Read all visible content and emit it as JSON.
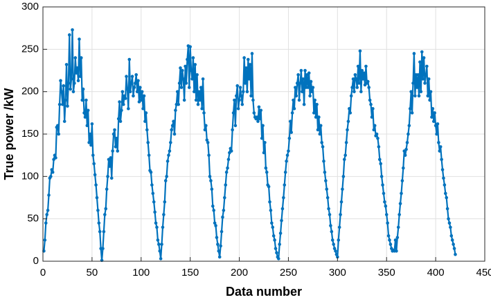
{
  "chart_data": {
    "type": "line",
    "x_label": "Data number",
    "y_label": "True power  /kW",
    "xlim": [
      0,
      450
    ],
    "xticks": [
      0,
      50,
      100,
      150,
      200,
      250,
      300,
      350,
      400,
      450
    ],
    "ylim": [
      0,
      300
    ],
    "yticks": [
      0,
      50,
      100,
      150,
      200,
      250,
      300
    ],
    "grid": true,
    "markers": true,
    "series": [
      {
        "name": "True power",
        "color": "#0072bd",
        "x": [
          1,
          2,
          3,
          4,
          5,
          6,
          7,
          8,
          9,
          10,
          11,
          12,
          13,
          14,
          15,
          16,
          17,
          18,
          19,
          20,
          21,
          22,
          23,
          24,
          25,
          26,
          27,
          28,
          29,
          30,
          31,
          32,
          33,
          34,
          35,
          36,
          37,
          38,
          39,
          40,
          41,
          42,
          43,
          44,
          45,
          46,
          47,
          48,
          49,
          50,
          51,
          52,
          53,
          54,
          55,
          56,
          57,
          58,
          59,
          60,
          61,
          62,
          63,
          64,
          65,
          66,
          67,
          68,
          69,
          70,
          71,
          72,
          73,
          74,
          75,
          76,
          77,
          78,
          79,
          80,
          81,
          82,
          83,
          84,
          85,
          86,
          87,
          88,
          89,
          90,
          91,
          92,
          93,
          94,
          95,
          96,
          97,
          98,
          99,
          100,
          101,
          102,
          103,
          104,
          105,
          106,
          107,
          108,
          109,
          110,
          111,
          112,
          113,
          114,
          115,
          116,
          117,
          118,
          119,
          120,
          121,
          122,
          123,
          124,
          125,
          126,
          127,
          128,
          129,
          130,
          131,
          132,
          133,
          134,
          135,
          136,
          137,
          138,
          139,
          140,
          141,
          142,
          143,
          144,
          145,
          146,
          147,
          148,
          149,
          150,
          151,
          152,
          153,
          154,
          155,
          156,
          157,
          158,
          159,
          160,
          161,
          162,
          163,
          164,
          165,
          166,
          167,
          168,
          169,
          170,
          171,
          172,
          173,
          174,
          175,
          176,
          177,
          178,
          179,
          180,
          181,
          182,
          183,
          184,
          185,
          186,
          187,
          188,
          189,
          190,
          191,
          192,
          193,
          194,
          195,
          196,
          197,
          198,
          199,
          200,
          201,
          202,
          203,
          204,
          205,
          206,
          207,
          208,
          209,
          210,
          211,
          212,
          213,
          214,
          215,
          216,
          217,
          218,
          219,
          220,
          221,
          222,
          223,
          224,
          225,
          226,
          227,
          228,
          229,
          230,
          231,
          232,
          233,
          234,
          235,
          236,
          237,
          238,
          239,
          240,
          241,
          242,
          243,
          244,
          245,
          246,
          247,
          248,
          249,
          250,
          251,
          252,
          253,
          254,
          255,
          256,
          257,
          258,
          259,
          260,
          261,
          262,
          263,
          264,
          265,
          266,
          267,
          268,
          269,
          270,
          271,
          272,
          273,
          274,
          275,
          276,
          277,
          278,
          279,
          280,
          281,
          282,
          283,
          284,
          285,
          286,
          287,
          288,
          289,
          290,
          291,
          292,
          293,
          294,
          295,
          296,
          297,
          298,
          299,
          300,
          301,
          302,
          303,
          304,
          305,
          306,
          307,
          308,
          309,
          310,
          311,
          312,
          313,
          314,
          315,
          316,
          317,
          318,
          319,
          320,
          321,
          322,
          323,
          324,
          325,
          326,
          327,
          328,
          329,
          330,
          331,
          332,
          333,
          334,
          335,
          336,
          337,
          338,
          339,
          340,
          341,
          342,
          343,
          344,
          345,
          346,
          347,
          348,
          349,
          350,
          351,
          352,
          353,
          354,
          355,
          356,
          357,
          358,
          359,
          360,
          361,
          362,
          363,
          364,
          365,
          366,
          367,
          368,
          369,
          370,
          371,
          372,
          373,
          374,
          375,
          376,
          377,
          378,
          379,
          380,
          381,
          382,
          383,
          384,
          385,
          386,
          387,
          388,
          389,
          390,
          391,
          392,
          393,
          394,
          395,
          396,
          397,
          398,
          399,
          400,
          401,
          402,
          403,
          404,
          405,
          406,
          407,
          408,
          409,
          410,
          411,
          412,
          413,
          414,
          415,
          416,
          417,
          418,
          419,
          420
        ],
        "values": [
          12,
          25,
          45,
          55,
          60,
          78,
          98,
          100,
          108,
          105,
          120,
          125,
          122,
          158,
          160,
          150,
          185,
          213,
          200,
          185,
          207,
          165,
          190,
          232,
          183,
          210,
          267,
          203,
          215,
          273,
          200,
          210,
          240,
          222,
          228,
          213,
          262,
          218,
          240,
          190,
          203,
          175,
          170,
          190,
          160,
          178,
          140,
          150,
          137,
          162,
          125,
          115,
          102,
          90,
          75,
          60,
          45,
          35,
          15,
          1,
          15,
          35,
          55,
          62,
          85,
          100,
          120,
          112,
          122,
          98,
          130,
          150,
          155,
          135,
          145,
          130,
          168,
          188,
          165,
          178,
          200,
          185,
          195,
          192,
          218,
          203,
          180,
          238,
          200,
          210,
          218,
          195,
          205,
          210,
          220,
          200,
          213,
          188,
          205,
          190,
          200,
          180,
          195,
          165,
          175,
          155,
          140,
          125,
          107,
          105,
          90,
          80,
          70,
          58,
          45,
          40,
          25,
          20,
          12,
          3,
          20,
          40,
          55,
          70,
          95,
          100,
          118,
          125,
          130,
          140,
          155,
          160,
          165,
          150,
          178,
          185,
          200,
          185,
          210,
          228,
          205,
          225,
          215,
          190,
          230,
          210,
          238,
          254,
          205,
          253,
          225,
          215,
          240,
          200,
          232,
          190,
          220,
          185,
          200,
          190,
          205,
          180,
          215,
          175,
          155,
          160,
          143,
          140,
          125,
          100,
          95,
          85,
          65,
          60,
          45,
          42,
          28,
          20,
          12,
          5,
          18,
          35,
          52,
          60,
          75,
          90,
          105,
          110,
          120,
          128,
          133,
          130,
          155,
          175,
          190,
          160,
          195,
          207,
          180,
          190,
          205,
          195,
          185,
          200,
          240,
          210,
          228,
          200,
          238,
          215,
          232,
          195,
          245,
          190,
          175,
          170,
          168,
          170,
          165,
          182,
          168,
          178,
          145,
          160,
          128,
          140,
          110,
          105,
          90,
          88,
          70,
          60,
          45,
          40,
          30,
          25,
          15,
          10,
          5,
          3,
          20,
          33,
          48,
          62,
          75,
          90,
          105,
          118,
          125,
          130,
          145,
          165,
          152,
          175,
          190,
          180,
          205,
          195,
          210,
          220,
          190,
          210,
          225,
          200,
          215,
          185,
          225,
          205,
          220,
          205,
          222,
          195,
          212,
          200,
          205,
          175,
          190,
          170,
          185,
          155,
          170,
          150,
          160,
          140,
          135,
          118,
          105,
          95,
          85,
          75,
          62,
          55,
          42,
          35,
          25,
          20,
          15,
          12,
          8,
          5,
          25,
          40,
          55,
          70,
          85,
          100,
          120,
          125,
          140,
          155,
          165,
          180,
          175,
          195,
          205,
          215,
          200,
          220,
          215,
          205,
          230,
          210,
          248,
          200,
          225,
          215,
          222,
          208,
          230,
          210,
          212,
          205,
          190,
          185,
          170,
          180,
          155,
          160,
          148,
          150,
          145,
          135,
          120,
          115,
          100,
          90,
          80,
          70,
          65,
          55,
          45,
          30,
          25,
          20,
          15,
          12,
          13,
          12,
          25,
          12,
          28,
          40,
          55,
          68,
          80,
          95,
          110,
          130,
          125,
          132,
          140,
          150,
          160,
          180,
          200,
          175,
          210,
          245,
          195,
          220,
          205,
          220,
          195,
          235,
          200,
          247,
          215,
          240,
          210,
          220,
          230,
          195,
          215,
          190,
          200,
          170,
          180,
          165,
          175,
          160,
          150,
          162,
          140,
          130,
          135,
          120,
          108,
          98,
          90,
          80,
          75,
          62,
          50,
          45,
          40,
          30,
          25,
          20,
          15,
          8
        ]
      }
    ]
  }
}
